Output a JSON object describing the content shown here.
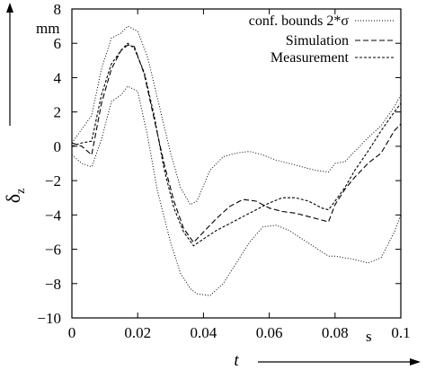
{
  "chart_data": {
    "type": "line",
    "title": "",
    "xlabel": "t",
    "ylabel_symbol": "δ",
    "ylabel_subscript": "z",
    "x_unit": "s",
    "y_unit": "mm",
    "xlim": [
      0,
      0.1
    ],
    "ylim": [
      -10,
      8
    ],
    "x_ticks": [
      {
        "value": 0,
        "label": "0"
      },
      {
        "value": 0.02,
        "label": "0.02"
      },
      {
        "value": 0.04,
        "label": "0.04"
      },
      {
        "value": 0.06,
        "label": "0.06"
      },
      {
        "value": 0.08,
        "label": "0.08"
      },
      {
        "value": 0.1,
        "label": "0.1"
      }
    ],
    "y_ticks": [
      {
        "value": -10,
        "label": "−10"
      },
      {
        "value": -8,
        "label": "−8"
      },
      {
        "value": -6,
        "label": "−6"
      },
      {
        "value": -4,
        "label": "−4"
      },
      {
        "value": -2,
        "label": "−2"
      },
      {
        "value": 0,
        "label": "0"
      },
      {
        "value": 2,
        "label": "2"
      },
      {
        "value": 4,
        "label": "4"
      },
      {
        "value": 6,
        "label": "6"
      },
      {
        "value": 8,
        "label": "8"
      }
    ],
    "grid": false,
    "legend_position": "top-right",
    "series": [
      {
        "name": "conf. bounds 2*σ",
        "style": "dotted",
        "color": "#000000",
        "band": [
          {
            "x": [
              0,
              0.003,
              0.006,
              0.009,
              0.012,
              0.015,
              0.017,
              0.02,
              0.023,
              0.026,
              0.03,
              0.033,
              0.036,
              0.038,
              0.042,
              0.046,
              0.05,
              0.054,
              0.058,
              0.062,
              0.066,
              0.07,
              0.074,
              0.078,
              0.08,
              0.083,
              0.086,
              0.09,
              0.094,
              0.098,
              0.1
            ],
            "y": [
              0.2,
              1.0,
              1.8,
              4.5,
              6.3,
              6.6,
              7.0,
              6.7,
              5.2,
              2.8,
              -0.4,
              -2.4,
              -3.4,
              -3.2,
              -1.4,
              -0.6,
              -0.4,
              -0.3,
              -0.5,
              -0.8,
              -1.0,
              -1.2,
              -1.4,
              -1.5,
              -1.0,
              -0.9,
              -0.3,
              0.5,
              1.2,
              2.3,
              3.0
            ]
          },
          {
            "x": [
              0,
              0.003,
              0.006,
              0.009,
              0.012,
              0.015,
              0.017,
              0.02,
              0.023,
              0.026,
              0.03,
              0.033,
              0.036,
              0.038,
              0.042,
              0.046,
              0.05,
              0.054,
              0.058,
              0.062,
              0.066,
              0.07,
              0.074,
              0.078,
              0.08,
              0.083,
              0.086,
              0.09,
              0.094,
              0.098,
              0.1
            ],
            "y": [
              -0.5,
              -1.0,
              -1.2,
              0.4,
              2.6,
              3.0,
              3.5,
              3.2,
              0.6,
              -2.6,
              -5.6,
              -7.4,
              -8.3,
              -8.6,
              -8.7,
              -8.0,
              -6.8,
              -5.6,
              -4.7,
              -4.6,
              -4.9,
              -5.4,
              -5.9,
              -6.4,
              -6.4,
              -6.5,
              -6.6,
              -6.8,
              -6.5,
              -5.0,
              -4.0
            ]
          }
        ]
      },
      {
        "name": "Simulation",
        "style": "dashed",
        "color": "#000000",
        "x": [
          0,
          0.003,
          0.006,
          0.009,
          0.012,
          0.015,
          0.017,
          0.019,
          0.022,
          0.025,
          0.028,
          0.031,
          0.034,
          0.037,
          0.04,
          0.044,
          0.048,
          0.052,
          0.056,
          0.06,
          0.064,
          0.068,
          0.072,
          0.076,
          0.078,
          0.08,
          0.083,
          0.086,
          0.09,
          0.094,
          0.098,
          0.1
        ],
        "y": [
          0.2,
          0.0,
          -0.5,
          2.5,
          4.5,
          5.6,
          5.9,
          5.8,
          4.2,
          1.6,
          -1.0,
          -3.2,
          -4.8,
          -5.6,
          -5.0,
          -4.2,
          -3.5,
          -3.1,
          -3.2,
          -3.6,
          -3.8,
          -3.9,
          -4.1,
          -4.3,
          -4.4,
          -3.4,
          -2.5,
          -1.8,
          -1.0,
          -0.4,
          0.9,
          1.3
        ]
      },
      {
        "name": "Measurement",
        "style": "short-dashed",
        "color": "#000000",
        "x": [
          0,
          0.003,
          0.006,
          0.009,
          0.012,
          0.015,
          0.017,
          0.019,
          0.022,
          0.025,
          0.028,
          0.031,
          0.034,
          0.037,
          0.04,
          0.044,
          0.048,
          0.052,
          0.056,
          0.06,
          0.064,
          0.068,
          0.072,
          0.076,
          0.078,
          0.08,
          0.083,
          0.086,
          0.09,
          0.094,
          0.098,
          0.1
        ],
        "y": [
          0.0,
          0.2,
          0.3,
          3.0,
          4.8,
          5.6,
          6.0,
          5.7,
          4.3,
          1.8,
          -1.3,
          -3.6,
          -5.0,
          -5.8,
          -5.4,
          -4.9,
          -4.5,
          -4.1,
          -3.7,
          -3.3,
          -3.0,
          -3.0,
          -3.2,
          -3.6,
          -3.7,
          -3.2,
          -2.4,
          -1.4,
          -0.3,
          0.9,
          2.0,
          2.5
        ]
      }
    ]
  }
}
